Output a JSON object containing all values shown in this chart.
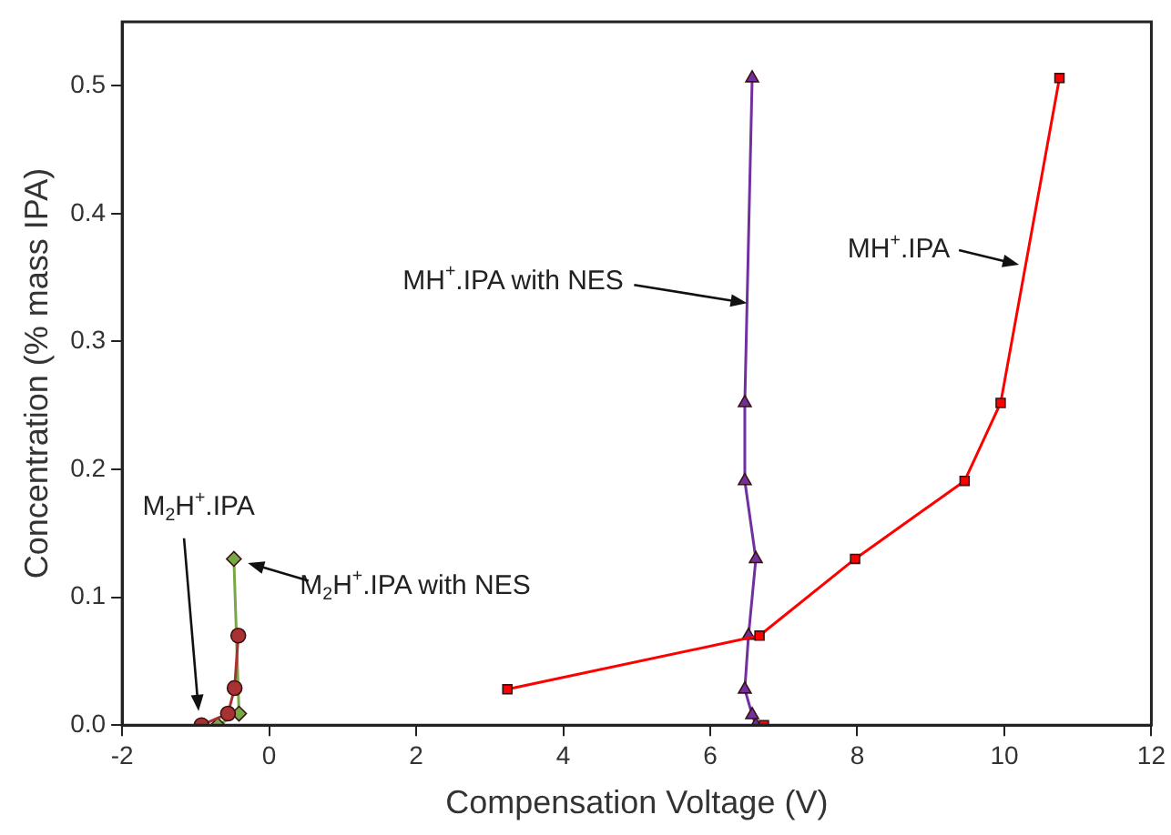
{
  "chart_data": {
    "type": "line",
    "xlabel": "Compensation Voltage (V)",
    "ylabel": "Concentration (% mass IPA)",
    "xlim": [
      -2,
      12
    ],
    "xticks": [
      -2,
      0,
      2,
      4,
      6,
      8,
      10,
      12
    ],
    "ylim": [
      0,
      0.55
    ],
    "yticks": [
      {
        "value": 0,
        "label": "0.0"
      },
      0.1,
      0.2,
      0.3,
      0.4,
      0.5
    ],
    "grid": false,
    "legend": false,
    "line_style": "solid",
    "series": [
      {
        "color": "#ff0000",
        "marker": "square",
        "x": [
          6.73,
          5,
          3.24,
          6.67,
          7.97,
          9.46,
          9.95,
          10.75
        ],
        "values": [
          0,
          null,
          0.028,
          0.07,
          0.13,
          0.191,
          0.252,
          0.506
        ]
      },
      {
        "color": "#7030a0",
        "marker": "triangle",
        "x": [
          6.62,
          6.57,
          6.47,
          6.52,
          6.62,
          6.47,
          6.47,
          6.57
        ],
        "values": [
          0,
          0.008,
          0.028,
          0.07,
          0.13,
          0.191,
          0.252,
          0.506
        ]
      },
      {
        "color": "#a83232",
        "marker": "circle",
        "x": [
          -0.92,
          -0.56,
          -0.47,
          -0.42
        ],
        "values": [
          0,
          0.009,
          0.029,
          0.07
        ]
      },
      {
        "color": "#77a846",
        "marker": "diamond",
        "x": [
          -0.7,
          -0.41,
          -0.48
        ],
        "values": [
          0,
          0.009,
          0.13
        ]
      }
    ],
    "annotations": [
      {
        "text": "MH$^{+}$.IPA with NES",
        "x": 6.5,
        "y": 0.33
      },
      {
        "text": "MH$^{+}$.IPA",
        "x": 10.2,
        "y": 0.36
      },
      {
        "text": "M$_{2}$H$^{+}$.IPA",
        "x": -0.96,
        "y": 0.011
      },
      {
        "text": "M$_{2}$H$^{+}$.IPA with NES",
        "x": -0.48,
        "y": 0.13
      }
    ]
  }
}
